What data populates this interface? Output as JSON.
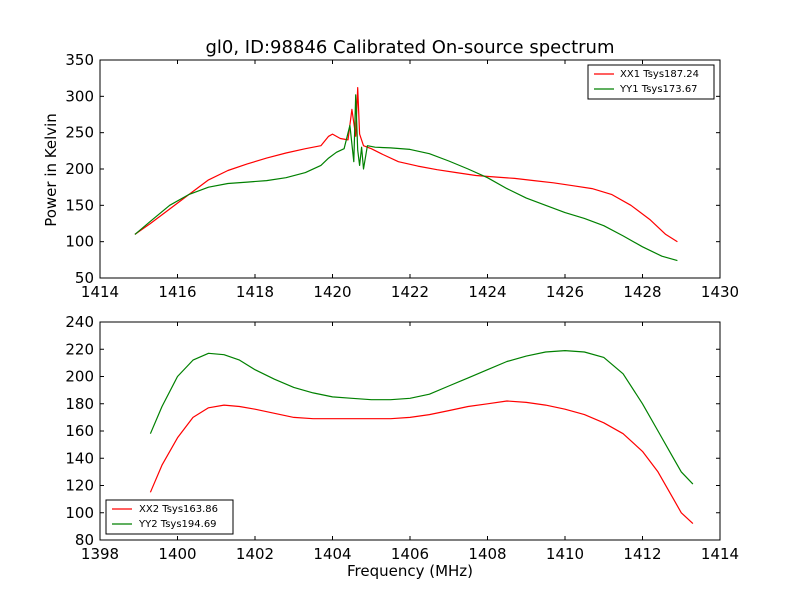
{
  "chart_data": [
    {
      "type": "line",
      "title": "gl0, ID:98846 Calibrated On-source spectrum",
      "xlabel": "",
      "ylabel": "Power in Kelvin",
      "xlim": [
        1414,
        1430
      ],
      "ylim": [
        50,
        350
      ],
      "xticks": [
        "1414",
        "1416",
        "1418",
        "1420",
        "1422",
        "1424",
        "1426",
        "1428",
        "1430"
      ],
      "yticks": [
        "50",
        "100",
        "150",
        "200",
        "250",
        "300",
        "350"
      ],
      "grid": false,
      "legend_position": "top-right",
      "series": [
        {
          "name": "XX1 Tsys187.24",
          "color": "#ff0000",
          "x": [
            1414.9,
            1415.3,
            1415.8,
            1416.3,
            1416.8,
            1417.3,
            1417.8,
            1418.3,
            1418.8,
            1419.3,
            1419.7,
            1419.9,
            1420.0,
            1420.2,
            1420.4,
            1420.5,
            1420.6,
            1420.65,
            1420.7,
            1420.8,
            1421.0,
            1421.3,
            1421.7,
            1422.2,
            1422.7,
            1423.2,
            1423.7,
            1424.2,
            1424.7,
            1425.2,
            1425.7,
            1426.2,
            1426.7,
            1427.2,
            1427.7,
            1428.2,
            1428.6,
            1428.9
          ],
          "y": [
            110,
            125,
            145,
            165,
            185,
            198,
            207,
            215,
            222,
            228,
            232,
            245,
            248,
            242,
            240,
            282,
            245,
            312,
            248,
            232,
            228,
            220,
            210,
            204,
            199,
            195,
            191,
            189,
            187,
            184,
            181,
            177,
            173,
            165,
            150,
            130,
            110,
            100
          ]
        },
        {
          "name": "YY1 Tsys173.67",
          "color": "#008000",
          "x": [
            1414.9,
            1415.3,
            1415.8,
            1416.3,
            1416.8,
            1417.3,
            1417.8,
            1418.3,
            1418.8,
            1419.3,
            1419.7,
            1419.9,
            1420.1,
            1420.3,
            1420.45,
            1420.55,
            1420.6,
            1420.65,
            1420.7,
            1420.75,
            1420.8,
            1420.9,
            1421.1,
            1421.5,
            1422.0,
            1422.5,
            1423.0,
            1423.5,
            1424.0,
            1424.5,
            1425.0,
            1425.5,
            1426.0,
            1426.5,
            1427.0,
            1427.5,
            1428.0,
            1428.5,
            1428.9
          ],
          "y": [
            110,
            128,
            150,
            165,
            175,
            180,
            182,
            184,
            188,
            195,
            205,
            215,
            223,
            228,
            260,
            210,
            302,
            226,
            205,
            230,
            200,
            232,
            230,
            229,
            227,
            221,
            211,
            200,
            188,
            173,
            160,
            150,
            140,
            132,
            122,
            108,
            93,
            80,
            74
          ]
        }
      ]
    },
    {
      "type": "line",
      "title": "",
      "xlabel": "Frequency (MHz)",
      "ylabel": "",
      "xlim": [
        1398,
        1414
      ],
      "ylim": [
        80,
        240
      ],
      "xticks": [
        "1398",
        "1400",
        "1402",
        "1404",
        "1406",
        "1408",
        "1410",
        "1412",
        "1414"
      ],
      "yticks": [
        "80",
        "100",
        "120",
        "140",
        "160",
        "180",
        "200",
        "220",
        "240"
      ],
      "grid": false,
      "legend_position": "bottom-left",
      "series": [
        {
          "name": "XX2 Tsys163.86",
          "color": "#ff0000",
          "x": [
            1399.3,
            1399.6,
            1400.0,
            1400.4,
            1400.8,
            1401.2,
            1401.6,
            1402.0,
            1402.5,
            1403.0,
            1403.5,
            1404.0,
            1404.5,
            1405.0,
            1405.5,
            1406.0,
            1406.5,
            1407.0,
            1407.5,
            1408.0,
            1408.5,
            1409.0,
            1409.5,
            1410.0,
            1410.5,
            1411.0,
            1411.5,
            1412.0,
            1412.4,
            1412.8,
            1413.0,
            1413.3
          ],
          "y": [
            115,
            135,
            155,
            170,
            177,
            179,
            178,
            176,
            173,
            170,
            169,
            169,
            169,
            169,
            169,
            170,
            172,
            175,
            178,
            180,
            182,
            181,
            179,
            176,
            172,
            166,
            158,
            145,
            130,
            110,
            100,
            92
          ]
        },
        {
          "name": "YY2 Tsys194.69",
          "color": "#008000",
          "x": [
            1399.3,
            1399.6,
            1400.0,
            1400.4,
            1400.8,
            1401.2,
            1401.6,
            1402.0,
            1402.5,
            1403.0,
            1403.5,
            1404.0,
            1404.5,
            1405.0,
            1405.5,
            1406.0,
            1406.5,
            1407.0,
            1407.5,
            1408.0,
            1408.5,
            1409.0,
            1409.5,
            1410.0,
            1410.5,
            1411.0,
            1411.5,
            1412.0,
            1412.4,
            1412.8,
            1413.0,
            1413.3
          ],
          "y": [
            158,
            178,
            200,
            212,
            217,
            216,
            212,
            205,
            198,
            192,
            188,
            185,
            184,
            183,
            183,
            184,
            187,
            193,
            199,
            205,
            211,
            215,
            218,
            219,
            218,
            214,
            202,
            180,
            160,
            140,
            130,
            121
          ]
        }
      ]
    }
  ]
}
